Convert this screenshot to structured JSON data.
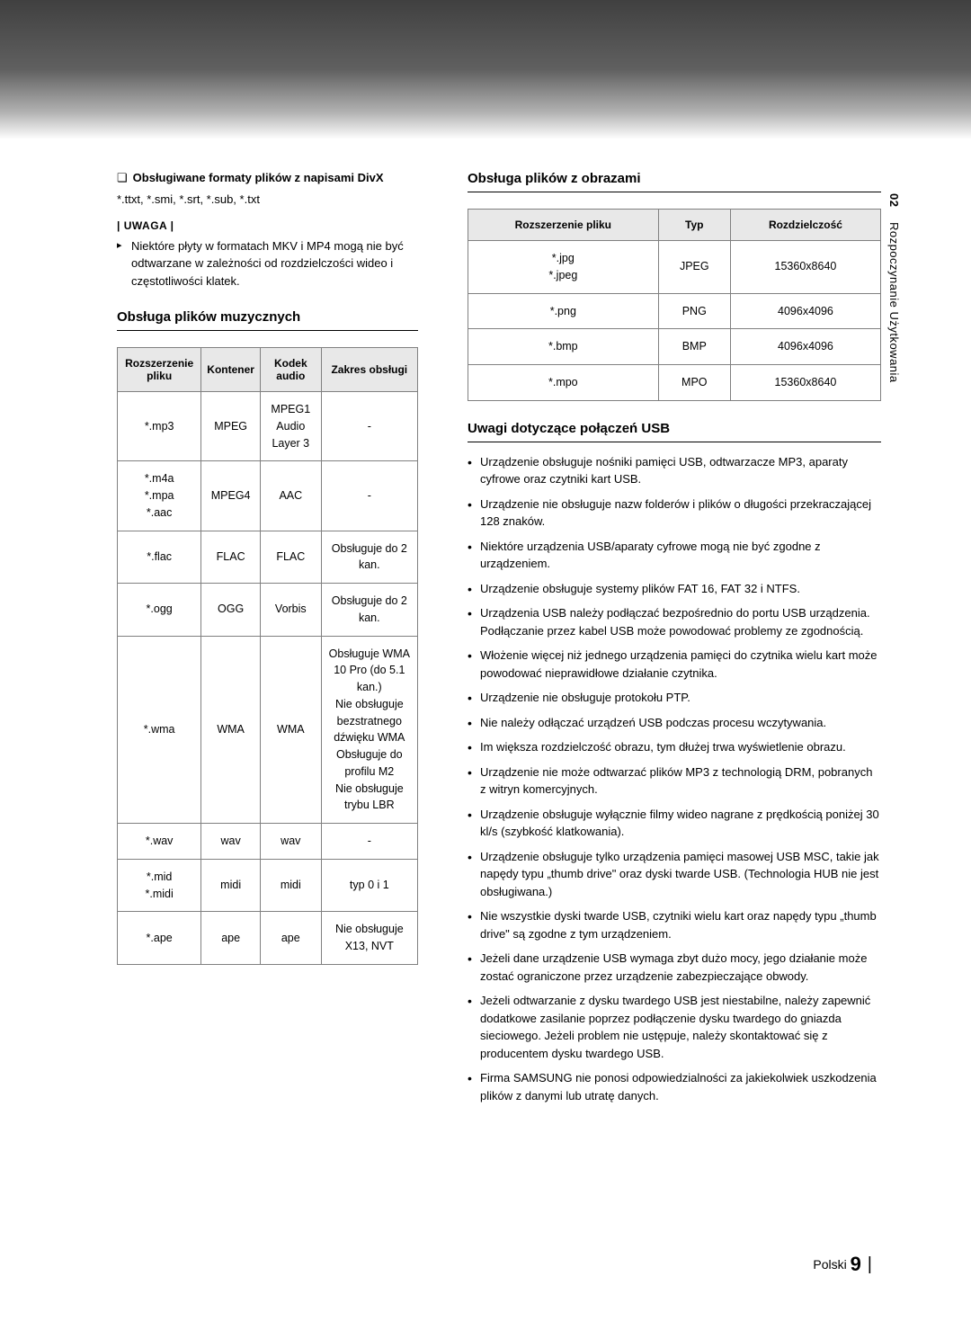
{
  "sidebar": {
    "num": "02",
    "label": "Rozpoczynanie Użytkowania"
  },
  "left": {
    "divx_heading": "Obsługiwane formaty plików z napisami DivX",
    "divx_formats": "*.ttxt, *.smi, *.srt, *.sub, *.txt",
    "note_label": "| UWAGA |",
    "note_text": "Niektóre płyty w formatach MKV i MP4 mogą nie być odtwarzane w zależności od rozdzielczości wideo i częstotliwości klatek.",
    "music_heading": "Obsługa plików muzycznych",
    "music_table": {
      "headers": [
        "Rozszerzenie pliku",
        "Kontener",
        "Kodek audio",
        "Zakres obsługi"
      ],
      "rows": [
        [
          "*.mp3",
          "MPEG",
          "MPEG1 Audio Layer 3",
          "-"
        ],
        [
          "*.m4a\n*.mpa\n*.aac",
          "MPEG4",
          "AAC",
          "-"
        ],
        [
          "*.flac",
          "FLAC",
          "FLAC",
          "Obsługuje do 2 kan."
        ],
        [
          "*.ogg",
          "OGG",
          "Vorbis",
          "Obsługuje do 2 kan."
        ],
        [
          "*.wma",
          "WMA",
          "WMA",
          "Obsługuje WMA 10 Pro (do 5.1 kan.)\nNie obsługuje bezstratnego dźwięku WMA\nObsługuje do profilu M2\nNie obsługuje trybu LBR"
        ],
        [
          "*.wav",
          "wav",
          "wav",
          "-"
        ],
        [
          "*.mid\n*.midi",
          "midi",
          "midi",
          "typ 0 i 1"
        ],
        [
          "*.ape",
          "ape",
          "ape",
          "Nie obsługuje X13, NVT"
        ]
      ]
    }
  },
  "right": {
    "image_heading": "Obsługa plików z obrazami",
    "image_table": {
      "headers": [
        "Rozszerzenie pliku",
        "Typ",
        "Rozdzielczość"
      ],
      "rows": [
        [
          "*.jpg\n*.jpeg",
          "JPEG",
          "15360x8640"
        ],
        [
          "*.png",
          "PNG",
          "4096x4096"
        ],
        [
          "*.bmp",
          "BMP",
          "4096x4096"
        ],
        [
          "*.mpo",
          "MPO",
          "15360x8640"
        ]
      ]
    },
    "usb_heading": "Uwagi dotyczące połączeń USB",
    "usb_notes": [
      "Urządzenie obsługuje nośniki pamięci USB, odtwarzacze MP3, aparaty cyfrowe oraz czytniki kart USB.",
      "Urządzenie nie obsługuje nazw folderów i plików o długości przekraczającej 128 znaków.",
      "Niektóre urządzenia USB/aparaty cyfrowe mogą nie być zgodne z urządzeniem.",
      "Urządzenie obsługuje systemy plików FAT 16, FAT 32 i NTFS.",
      "Urządzenia USB należy podłączać bezpośrednio do portu USB urządzenia. Podłączanie przez kabel USB może powodować problemy ze zgodnością.",
      "Włożenie więcej niż jednego urządzenia pamięci do czytnika wielu kart może powodować nieprawidłowe działanie czytnika.",
      "Urządzenie nie obsługuje protokołu PTP.",
      "Nie należy odłączać urządzeń USB podczas procesu wczytywania.",
      "Im większa rozdzielczość obrazu, tym dłużej trwa wyświetlenie obrazu.",
      "Urządzenie nie może odtwarzać plików MP3 z technologią DRM, pobranych z witryn komercyjnych.",
      "Urządzenie obsługuje wyłącznie filmy wideo nagrane z prędkością poniżej 30 kl/s (szybkość klatkowania).",
      "Urządzenie obsługuje tylko urządzenia pamięci masowej USB MSC, takie jak napędy typu „thumb drive\" oraz dyski twarde USB. (Technologia HUB nie jest obsługiwana.)",
      "Nie wszystkie dyski twarde USB, czytniki wielu kart oraz napędy typu „thumb drive\" są zgodne z tym urządzeniem.",
      "Jeżeli dane urządzenie USB wymaga zbyt dużo mocy, jego działanie może zostać ograniczone przez urządzenie zabezpieczające obwody.",
      "Jeżeli odtwarzanie z dysku twardego USB jest niestabilne, należy zapewnić dodatkowe zasilanie poprzez podłączenie dysku twardego do gniazda sieciowego. Jeżeli problem nie ustępuje, należy skontaktować się z producentem dysku twardego USB.",
      "Firma SAMSUNG nie ponosi odpowiedzialności za jakiekolwiek uszkodzenia plików z danymi lub utratę danych."
    ]
  },
  "footer": {
    "lang": "Polski",
    "page": "9"
  }
}
